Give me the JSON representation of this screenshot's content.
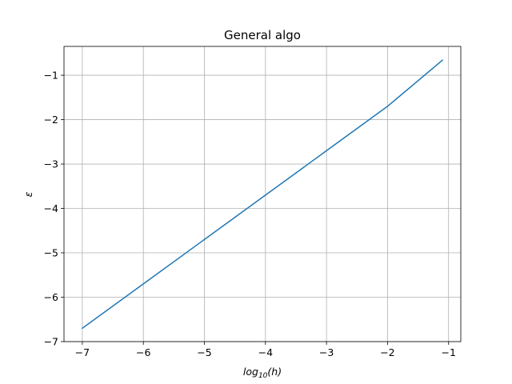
{
  "chart_data": {
    "type": "line",
    "title": "General algo",
    "xlabel": {
      "base": "log",
      "sub": "10",
      "arg": "(h)"
    },
    "ylabel": "ε",
    "xlim": [
      -7.3,
      -0.8
    ],
    "ylim": [
      -7.0,
      -0.35
    ],
    "xticks": [
      -7,
      -6,
      -5,
      -4,
      -3,
      -2,
      -1
    ],
    "yticks": [
      -7,
      -6,
      -5,
      -4,
      -3,
      -2,
      -1
    ],
    "grid": true,
    "series": [
      {
        "color": "#1f77b4",
        "x": [
          -7.0,
          -6.0,
          -5.0,
          -4.0,
          -3.0,
          -2.0,
          -1.1
        ],
        "y": [
          -6.7,
          -5.7,
          -4.7,
          -3.7,
          -2.7,
          -1.7,
          -0.66
        ]
      }
    ]
  }
}
